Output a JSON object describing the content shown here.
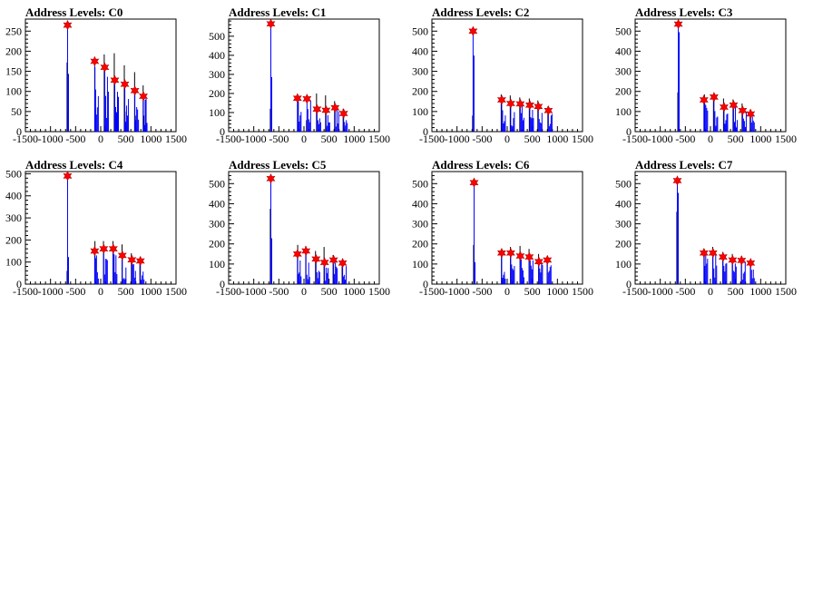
{
  "chart_data": [
    {
      "type": "histogram",
      "title": "Address Levels: C0",
      "xlim": [
        -1500,
        1500
      ],
      "ylim": [
        0,
        280
      ],
      "yticks": [
        0,
        50,
        100,
        150,
        200,
        250
      ],
      "xticks": [
        -1500,
        -1000,
        -500,
        0,
        500,
        1000,
        1500
      ],
      "peaks": [
        {
          "x": -660,
          "y": 265
        },
        {
          "x": -120,
          "y": 175
        },
        {
          "x": 80,
          "y": 160
        },
        {
          "x": 280,
          "y": 128
        },
        {
          "x": 480,
          "y": 118
        },
        {
          "x": 680,
          "y": 102
        },
        {
          "x": 850,
          "y": 88
        }
      ],
      "series": [
        {
          "color": "#000000",
          "values": [
            {
              "x": -670,
              "y": 172
            },
            {
              "x": -650,
              "y": 52
            },
            {
              "x": -115,
              "y": 160
            },
            {
              "x": -105,
              "y": 55
            },
            {
              "x": 70,
              "y": 192
            },
            {
              "x": 85,
              "y": 15
            },
            {
              "x": 270,
              "y": 195
            },
            {
              "x": 285,
              "y": 45
            },
            {
              "x": 470,
              "y": 165
            },
            {
              "x": 485,
              "y": 50
            },
            {
              "x": 675,
              "y": 148
            },
            {
              "x": 690,
              "y": 40
            },
            {
              "x": 845,
              "y": 115
            },
            {
              "x": 860,
              "y": 40
            }
          ]
        }
      ]
    },
    {
      "type": "histogram",
      "title": "Address Levels: C1",
      "xlim": [
        -1500,
        1500
      ],
      "ylim": [
        0,
        590
      ],
      "yticks": [
        0,
        100,
        200,
        300,
        400,
        500
      ],
      "xticks": [
        -1500,
        -1000,
        -500,
        0,
        500,
        1000,
        1500
      ],
      "peaks": [
        {
          "x": -660,
          "y": 565
        },
        {
          "x": -130,
          "y": 175
        },
        {
          "x": 60,
          "y": 172
        },
        {
          "x": 260,
          "y": 118
        },
        {
          "x": 440,
          "y": 112
        },
        {
          "x": 620,
          "y": 125
        },
        {
          "x": 790,
          "y": 95
        }
      ],
      "series": [
        {
          "color": "#000000",
          "values": [
            {
              "x": -670,
              "y": 120
            },
            {
              "x": -125,
              "y": 195
            },
            {
              "x": 50,
              "y": 60
            },
            {
              "x": 250,
              "y": 200
            },
            {
              "x": 430,
              "y": 190
            },
            {
              "x": 440,
              "y": 20
            },
            {
              "x": 610,
              "y": 160
            },
            {
              "x": 780,
              "y": 120
            },
            {
              "x": 790,
              "y": 20
            }
          ]
        }
      ]
    },
    {
      "type": "histogram",
      "title": "Address Levels: C2",
      "xlim": [
        -1500,
        1500
      ],
      "ylim": [
        0,
        560
      ],
      "yticks": [
        0,
        100,
        200,
        300,
        400,
        500
      ],
      "xticks": [
        -1500,
        -1000,
        -500,
        0,
        500,
        1000,
        1500
      ],
      "peaks": [
        {
          "x": -680,
          "y": 500
        },
        {
          "x": -110,
          "y": 158
        },
        {
          "x": 70,
          "y": 140
        },
        {
          "x": 260,
          "y": 138
        },
        {
          "x": 450,
          "y": 132
        },
        {
          "x": 620,
          "y": 125
        },
        {
          "x": 820,
          "y": 105
        }
      ],
      "series": [
        {
          "color": "#000000",
          "values": [
            {
              "x": -690,
              "y": 80
            },
            {
              "x": -120,
              "y": 185
            },
            {
              "x": 60,
              "y": 180
            },
            {
              "x": 250,
              "y": 170
            },
            {
              "x": 440,
              "y": 165
            },
            {
              "x": 610,
              "y": 155
            },
            {
              "x": 810,
              "y": 125
            }
          ]
        }
      ]
    },
    {
      "type": "histogram",
      "title": "Address Levels: C3",
      "xlim": [
        -1500,
        1500
      ],
      "ylim": [
        0,
        560
      ],
      "yticks": [
        0,
        100,
        200,
        300,
        400,
        500
      ],
      "xticks": [
        -1500,
        -1000,
        -500,
        0,
        500,
        1000,
        1500
      ],
      "peaks": [
        {
          "x": -640,
          "y": 535
        },
        {
          "x": -130,
          "y": 158
        },
        {
          "x": 70,
          "y": 172
        },
        {
          "x": 270,
          "y": 122
        },
        {
          "x": 460,
          "y": 132
        },
        {
          "x": 640,
          "y": 105
        },
        {
          "x": 800,
          "y": 88
        }
      ],
      "series": [
        {
          "color": "#000000",
          "values": [
            {
              "x": -650,
              "y": 195
            },
            {
              "x": -120,
              "y": 185
            },
            {
              "x": 60,
              "y": 180
            },
            {
              "x": 260,
              "y": 165
            },
            {
              "x": 450,
              "y": 160
            },
            {
              "x": 630,
              "y": 140
            },
            {
              "x": 790,
              "y": 110
            }
          ]
        }
      ]
    },
    {
      "type": "histogram",
      "title": "Address Levels: C4",
      "xlim": [
        -1500,
        1500
      ],
      "ylim": [
        0,
        510
      ],
      "yticks": [
        0,
        100,
        200,
        300,
        400,
        500
      ],
      "xticks": [
        -1500,
        -1000,
        -500,
        0,
        500,
        1000,
        1500
      ],
      "peaks": [
        {
          "x": -660,
          "y": 490
        },
        {
          "x": -120,
          "y": 150
        },
        {
          "x": 60,
          "y": 160
        },
        {
          "x": 250,
          "y": 160
        },
        {
          "x": 430,
          "y": 130
        },
        {
          "x": 620,
          "y": 110
        },
        {
          "x": 790,
          "y": 105
        }
      ],
      "series": [
        {
          "color": "#000000",
          "values": [
            {
              "x": -670,
              "y": 60
            },
            {
              "x": -115,
              "y": 195
            },
            {
              "x": 55,
              "y": 195
            },
            {
              "x": 245,
              "y": 195
            },
            {
              "x": 425,
              "y": 180
            },
            {
              "x": 610,
              "y": 140
            },
            {
              "x": 780,
              "y": 120
            }
          ]
        }
      ]
    },
    {
      "type": "histogram",
      "title": "Address Levels: C5",
      "xlim": [
        -1500,
        1500
      ],
      "ylim": [
        0,
        560
      ],
      "yticks": [
        0,
        100,
        200,
        300,
        400,
        500
      ],
      "xticks": [
        -1500,
        -1000,
        -500,
        0,
        500,
        1000,
        1500
      ],
      "peaks": [
        {
          "x": -660,
          "y": 525
        },
        {
          "x": -130,
          "y": 150
        },
        {
          "x": 40,
          "y": 165
        },
        {
          "x": 240,
          "y": 125
        },
        {
          "x": 410,
          "y": 108
        },
        {
          "x": 590,
          "y": 120
        },
        {
          "x": 770,
          "y": 105
        }
      ],
      "series": [
        {
          "color": "#000000",
          "values": [
            {
              "x": -670,
              "y": 375
            },
            {
              "x": -125,
              "y": 195
            },
            {
              "x": 35,
              "y": 190
            },
            {
              "x": 230,
              "y": 165
            },
            {
              "x": 400,
              "y": 185
            },
            {
              "x": 580,
              "y": 145
            },
            {
              "x": 760,
              "y": 120
            }
          ]
        }
      ]
    },
    {
      "type": "histogram",
      "title": "Address Levels: C6",
      "xlim": [
        -1500,
        1500
      ],
      "ylim": [
        0,
        560
      ],
      "yticks": [
        0,
        100,
        200,
        300,
        400,
        500
      ],
      "xticks": [
        -1500,
        -1000,
        -500,
        0,
        500,
        1000,
        1500
      ],
      "peaks": [
        {
          "x": -660,
          "y": 505
        },
        {
          "x": -110,
          "y": 155
        },
        {
          "x": 70,
          "y": 155
        },
        {
          "x": 260,
          "y": 140
        },
        {
          "x": 440,
          "y": 135
        },
        {
          "x": 630,
          "y": 112
        },
        {
          "x": 800,
          "y": 120
        }
      ],
      "series": [
        {
          "color": "#000000",
          "values": [
            {
              "x": -670,
              "y": 195
            },
            {
              "x": -115,
              "y": 165
            },
            {
              "x": 65,
              "y": 185
            },
            {
              "x": 255,
              "y": 190
            },
            {
              "x": 435,
              "y": 175
            },
            {
              "x": 625,
              "y": 150
            },
            {
              "x": 795,
              "y": 125
            }
          ]
        }
      ]
    },
    {
      "type": "histogram",
      "title": "Address Levels: C7",
      "xlim": [
        -1500,
        1500
      ],
      "ylim": [
        0,
        560
      ],
      "yticks": [
        0,
        100,
        200,
        300,
        400,
        500
      ],
      "xticks": [
        -1500,
        -1000,
        -500,
        0,
        500,
        1000,
        1500
      ],
      "peaks": [
        {
          "x": -660,
          "y": 515
        },
        {
          "x": -130,
          "y": 155
        },
        {
          "x": 50,
          "y": 155
        },
        {
          "x": 250,
          "y": 135
        },
        {
          "x": 440,
          "y": 120
        },
        {
          "x": 620,
          "y": 118
        },
        {
          "x": 800,
          "y": 105
        }
      ],
      "series": [
        {
          "color": "#000000",
          "values": [
            {
              "x": -670,
              "y": 360
            },
            {
              "x": -125,
              "y": 175
            },
            {
              "x": 45,
              "y": 185
            },
            {
              "x": 245,
              "y": 160
            },
            {
              "x": 435,
              "y": 150
            },
            {
              "x": 615,
              "y": 140
            },
            {
              "x": 795,
              "y": 115
            }
          ]
        }
      ]
    }
  ],
  "style": {
    "histogram_color": "#0000ff",
    "marker_color": "#ff0000",
    "axis_color": "#000000"
  }
}
